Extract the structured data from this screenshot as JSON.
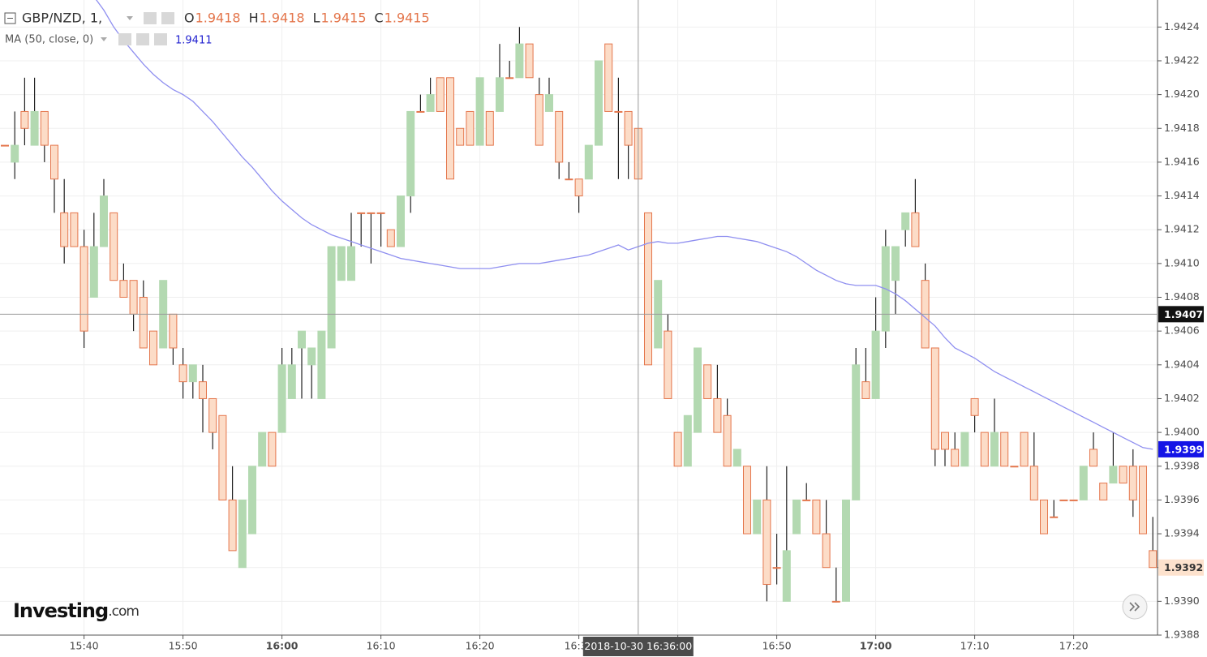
{
  "chart_data": {
    "type": "candlestick",
    "title": "GBP/NZD, 1,",
    "ohlc_letters": [
      "O",
      "H",
      "L",
      "C"
    ],
    "x": [
      "15:32",
      "15:33",
      "15:34",
      "15:35",
      "15:36",
      "15:37",
      "15:38",
      "15:39",
      "15:40",
      "15:41",
      "15:42",
      "15:43",
      "15:44",
      "15:45",
      "15:46",
      "15:47",
      "15:48",
      "15:49",
      "15:50",
      "15:51",
      "15:52",
      "15:53",
      "15:54",
      "15:55",
      "15:56",
      "15:57",
      "15:58",
      "15:59",
      "16:00",
      "16:01",
      "16:02",
      "16:03",
      "16:04",
      "16:05",
      "16:06",
      "16:07",
      "16:08",
      "16:09",
      "16:10",
      "16:11",
      "16:12",
      "16:13",
      "16:14",
      "16:15",
      "16:16",
      "16:17",
      "16:18",
      "16:19",
      "16:20",
      "16:21",
      "16:22",
      "16:23",
      "16:24",
      "16:25",
      "16:26",
      "16:27",
      "16:28",
      "16:29",
      "16:30",
      "16:31",
      "16:32",
      "16:33",
      "16:34",
      "16:35",
      "16:36",
      "16:37",
      "16:38",
      "16:39",
      "16:40",
      "16:41",
      "16:42",
      "16:43",
      "16:44",
      "16:45",
      "16:46",
      "16:47",
      "16:48",
      "16:49",
      "16:50",
      "16:51",
      "16:52",
      "16:53",
      "16:54",
      "16:55",
      "16:56",
      "16:57",
      "16:58",
      "16:59",
      "17:00",
      "17:01",
      "17:02",
      "17:03",
      "17:04",
      "17:05",
      "17:06",
      "17:07",
      "17:08",
      "17:09",
      "17:10",
      "17:11",
      "17:12",
      "17:13",
      "17:14",
      "17:15",
      "17:16",
      "17:17",
      "17:18",
      "17:19",
      "17:20",
      "17:21",
      "17:22",
      "17:23",
      "17:24",
      "17:25",
      "17:26",
      "17:27",
      "17:28"
    ],
    "open": [
      1.9417,
      1.9416,
      1.9419,
      1.9417,
      1.9419,
      1.9417,
      1.9413,
      1.9413,
      1.9411,
      1.9408,
      1.9411,
      1.9413,
      1.9409,
      1.9409,
      1.9408,
      1.9406,
      1.9405,
      1.9407,
      1.9404,
      1.9403,
      1.9403,
      1.9402,
      1.9401,
      1.9396,
      1.9392,
      1.9394,
      1.9398,
      1.94,
      1.94,
      1.9402,
      1.9405,
      1.9404,
      1.9402,
      1.9405,
      1.9409,
      1.9409,
      1.9413,
      1.9413,
      1.9413,
      1.9412,
      1.9411,
      1.9414,
      1.9419,
      1.9419,
      1.9421,
      1.9421,
      1.9418,
      1.9419,
      1.9417,
      1.9419,
      1.9419,
      1.9421,
      1.9421,
      1.9423,
      1.942,
      1.9419,
      1.9419,
      1.9415,
      1.9415,
      1.9415,
      1.9417,
      1.9423,
      1.9419,
      1.9419,
      1.9418,
      1.9413,
      1.9405,
      1.9406,
      1.94,
      1.9398,
      1.94,
      1.9404,
      1.9402,
      1.9401,
      1.9398,
      1.9398,
      1.9394,
      1.9396,
      1.9392,
      1.939,
      1.9394,
      1.9396,
      1.9396,
      1.9394,
      1.939,
      1.939,
      1.9396,
      1.9403,
      1.9402,
      1.9406,
      1.9409,
      1.9412,
      1.9413,
      1.9409,
      1.9405,
      1.94,
      1.9399,
      1.9398,
      1.9402,
      1.94,
      1.9398,
      1.94,
      1.9398,
      1.94,
      1.9398,
      1.9396,
      1.9395,
      1.9396,
      1.9396,
      1.9396,
      1.9399,
      1.9397,
      1.9397,
      1.9398,
      1.9398,
      1.9398,
      1.9393
    ],
    "high": [
      1.9417,
      1.9419,
      1.9421,
      1.9421,
      1.9419,
      1.9417,
      1.9415,
      1.9413,
      1.9412,
      1.9413,
      1.9415,
      1.9413,
      1.941,
      1.9409,
      1.9409,
      1.9406,
      1.9409,
      1.9407,
      1.9405,
      1.9404,
      1.9404,
      1.9402,
      1.9401,
      1.9398,
      1.9396,
      1.9398,
      1.94,
      1.94,
      1.9405,
      1.9405,
      1.9406,
      1.9405,
      1.9406,
      1.9411,
      1.9411,
      1.9413,
      1.9413,
      1.9413,
      1.9413,
      1.9412,
      1.9414,
      1.9419,
      1.942,
      1.9421,
      1.9421,
      1.9421,
      1.9418,
      1.9419,
      1.9421,
      1.9419,
      1.9423,
      1.9422,
      1.9424,
      1.9423,
      1.9421,
      1.9421,
      1.9419,
      1.9416,
      1.9415,
      1.9417,
      1.9422,
      1.9423,
      1.9421,
      1.9419,
      1.9418,
      1.9413,
      1.9409,
      1.9407,
      1.94,
      1.9401,
      1.9405,
      1.9404,
      1.9404,
      1.9402,
      1.9399,
      1.9398,
      1.9396,
      1.9398,
      1.9394,
      1.9398,
      1.9396,
      1.9397,
      1.9396,
      1.9396,
      1.9392,
      1.9396,
      1.9405,
      1.9405,
      1.9408,
      1.9412,
      1.9411,
      1.9413,
      1.9415,
      1.941,
      1.9405,
      1.94,
      1.94,
      1.94,
      1.9402,
      1.94,
      1.9402,
      1.94,
      1.9398,
      1.94,
      1.94,
      1.9396,
      1.9396,
      1.9396,
      1.9396,
      1.9398,
      1.94,
      1.9397,
      1.94,
      1.9398,
      1.9399,
      1.9398,
      1.9395
    ],
    "low": [
      1.9417,
      1.9415,
      1.9417,
      1.9417,
      1.9416,
      1.9413,
      1.941,
      1.9411,
      1.9405,
      1.9408,
      1.9411,
      1.9409,
      1.9408,
      1.9406,
      1.9405,
      1.9404,
      1.9405,
      1.9404,
      1.9402,
      1.9402,
      1.94,
      1.9399,
      1.9396,
      1.9393,
      1.9392,
      1.9394,
      1.9398,
      1.9398,
      1.94,
      1.9402,
      1.9402,
      1.9402,
      1.9402,
      1.9405,
      1.9409,
      1.9409,
      1.9411,
      1.941,
      1.9411,
      1.9411,
      1.9411,
      1.9413,
      1.9419,
      1.9419,
      1.9419,
      1.9415,
      1.9417,
      1.9417,
      1.9417,
      1.9417,
      1.9419,
      1.9421,
      1.9421,
      1.9421,
      1.9417,
      1.9419,
      1.9415,
      1.9415,
      1.9413,
      1.9415,
      1.9417,
      1.9419,
      1.9415,
      1.9415,
      1.9415,
      1.9404,
      1.9405,
      1.9402,
      1.9398,
      1.9398,
      1.94,
      1.9402,
      1.94,
      1.9398,
      1.9398,
      1.9394,
      1.9394,
      1.939,
      1.9391,
      1.939,
      1.9394,
      1.9396,
      1.9394,
      1.9392,
      1.939,
      1.939,
      1.9396,
      1.9402,
      1.9402,
      1.9405,
      1.9407,
      1.9411,
      1.9411,
      1.9405,
      1.9398,
      1.9398,
      1.9398,
      1.9398,
      1.94,
      1.9398,
      1.9398,
      1.9398,
      1.9398,
      1.9398,
      1.9396,
      1.9394,
      1.9395,
      1.9396,
      1.9396,
      1.9396,
      1.9398,
      1.9396,
      1.9397,
      1.9397,
      1.9395,
      1.9394,
      1.9392
    ],
    "close": [
      1.9417,
      1.9417,
      1.9418,
      1.9419,
      1.9417,
      1.9415,
      1.9411,
      1.9411,
      1.9406,
      1.9411,
      1.9414,
      1.9409,
      1.9408,
      1.9407,
      1.9405,
      1.9404,
      1.9409,
      1.9405,
      1.9403,
      1.9404,
      1.9402,
      1.94,
      1.9396,
      1.9393,
      1.9396,
      1.9398,
      1.94,
      1.9398,
      1.9404,
      1.9404,
      1.9406,
      1.9405,
      1.9406,
      1.9411,
      1.9411,
      1.9411,
      1.9413,
      1.9413,
      1.9413,
      1.9411,
      1.9414,
      1.9419,
      1.9419,
      1.942,
      1.9419,
      1.9415,
      1.9417,
      1.9417,
      1.9421,
      1.9417,
      1.9421,
      1.9421,
      1.9423,
      1.9421,
      1.9417,
      1.942,
      1.9416,
      1.9415,
      1.9414,
      1.9417,
      1.9422,
      1.9419,
      1.9419,
      1.9417,
      1.9415,
      1.9404,
      1.9409,
      1.9402,
      1.9398,
      1.9401,
      1.9405,
      1.9402,
      1.94,
      1.9398,
      1.9399,
      1.9394,
      1.9396,
      1.9391,
      1.9392,
      1.9393,
      1.9396,
      1.9396,
      1.9394,
      1.9392,
      1.939,
      1.9396,
      1.9404,
      1.9402,
      1.9406,
      1.9411,
      1.9411,
      1.9413,
      1.9411,
      1.9405,
      1.9399,
      1.9399,
      1.9398,
      1.94,
      1.9401,
      1.9398,
      1.94,
      1.9398,
      1.9398,
      1.9398,
      1.9396,
      1.9394,
      1.9395,
      1.9396,
      1.9396,
      1.9398,
      1.9398,
      1.9396,
      1.9398,
      1.9397,
      1.9396,
      1.9394,
      1.9392
    ],
    "up_color": "#b3d9b1",
    "down_color": "#fcdcc7",
    "down_edge": "#e4764c",
    "ma": {
      "name": "MA (50, close, 0)",
      "color": "#8f8ff0",
      "value_color": "#1f1fcf",
      "values": [
        null,
        null,
        null,
        null,
        null,
        null,
        null,
        null,
        null,
        1.94258,
        1.9425,
        1.9424,
        1.94232,
        1.94225,
        1.94218,
        1.94212,
        1.94207,
        1.94203,
        1.942,
        1.94196,
        1.9419,
        1.94184,
        1.94177,
        1.9417,
        1.94163,
        1.94157,
        1.9415,
        1.94143,
        1.94137,
        1.94132,
        1.94127,
        1.94123,
        1.9412,
        1.94117,
        1.94115,
        1.94113,
        1.94111,
        1.94109,
        1.94107,
        1.94105,
        1.94103,
        1.94102,
        1.94101,
        1.941,
        1.94099,
        1.94098,
        1.94097,
        1.94097,
        1.94097,
        1.94097,
        1.94098,
        1.94099,
        1.941,
        1.941,
        1.941,
        1.94101,
        1.94102,
        1.94103,
        1.94104,
        1.94105,
        1.94107,
        1.94109,
        1.94111,
        1.94108,
        1.9411,
        1.94112,
        1.94113,
        1.94112,
        1.94112,
        1.94113,
        1.94114,
        1.94115,
        1.94116,
        1.94116,
        1.94115,
        1.94114,
        1.94113,
        1.94111,
        1.94109,
        1.94107,
        1.94104,
        1.941,
        1.94096,
        1.94093,
        1.9409,
        1.94088,
        1.94087,
        1.94087,
        1.94087,
        1.94085,
        1.94082,
        1.94078,
        1.94073,
        1.94068,
        1.94063,
        1.94056,
        1.9405,
        1.94047,
        1.94044,
        1.9404,
        1.94036,
        1.94033,
        1.9403,
        1.94027,
        1.94024,
        1.94021,
        1.94018,
        1.94015,
        1.94012,
        1.94009,
        1.94006,
        1.94003,
        1.94,
        1.93997,
        1.93994,
        1.93991,
        1.9399
      ]
    },
    "crosshair": {
      "time_label": "2018-10-30 16:36:00",
      "price": 1.9407
    },
    "ylim": [
      1.9388,
      1.94256
    ],
    "yticks": [
      1.9388,
      {
        "value": 1.939,
        "label": "1.9390"
      },
      1.9392,
      1.9394,
      1.9396,
      1.9398,
      {
        "value": 1.94,
        "label": "1.9400"
      },
      1.9402,
      1.9404,
      1.9406,
      1.9408,
      {
        "value": 1.941,
        "label": "1.9410"
      },
      1.9412,
      1.9414,
      1.9416,
      1.9418,
      {
        "value": 1.942,
        "label": "1.9420"
      },
      1.9422,
      1.9424
    ],
    "xticks": [
      "15:40",
      "15:50",
      "16:00",
      "16:10",
      "16:20",
      "16:30",
      "16:40",
      "16:50",
      "17:00",
      "17:10",
      "17:20"
    ],
    "grid": true,
    "logo": {
      "name": "Investing",
      "suffix": ".com"
    }
  }
}
